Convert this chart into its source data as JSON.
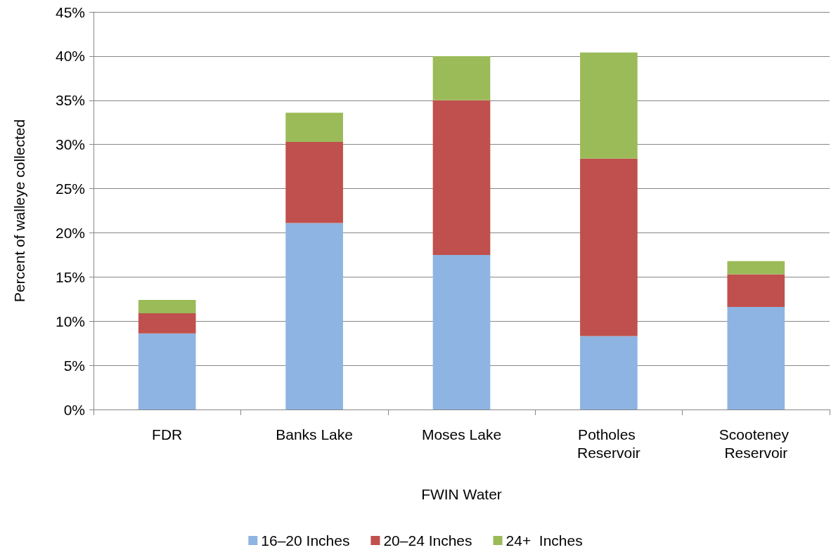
{
  "chart_data": {
    "type": "bar",
    "stacked": true,
    "xlabel": "FWIN Water",
    "ylabel": "Percent of walleye collected",
    "categories": [
      "FDR",
      "Banks Lake",
      "Moses Lake",
      "Potholes Reservoir",
      "Scooteney Reservoir"
    ],
    "series": [
      {
        "name": "16–20 Inches",
        "color": "#8eb4e3",
        "values": [
          8.6,
          21.1,
          17.5,
          8.3,
          11.6
        ]
      },
      {
        "name": "20–24 Inches",
        "color": "#c0504d",
        "values": [
          2.3,
          9.2,
          17.5,
          20.1,
          3.7
        ]
      },
      {
        "name": "24+  Inches",
        "color": "#9bbb59",
        "values": [
          1.5,
          3.3,
          5.0,
          12.0,
          1.5
        ]
      }
    ],
    "ylim": [
      0,
      45
    ],
    "yticks": [
      {
        "value": 0,
        "label": "0%"
      },
      {
        "value": 5,
        "label": "5%"
      },
      {
        "value": 10,
        "label": "10%"
      },
      {
        "value": 15,
        "label": "15%"
      },
      {
        "value": 20,
        "label": "20%"
      },
      {
        "value": 25,
        "label": "25%"
      },
      {
        "value": 30,
        "label": "30%"
      },
      {
        "value": 35,
        "label": "35%"
      },
      {
        "value": 40,
        "label": "40%"
      },
      {
        "value": 45,
        "label": "45%"
      }
    ],
    "grid": "y",
    "legend": "bottom"
  }
}
